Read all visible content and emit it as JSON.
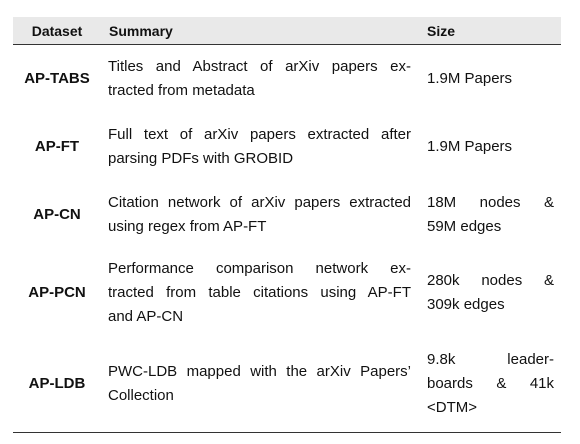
{
  "table": {
    "headers": {
      "dataset": "Dataset",
      "summary": "Summary",
      "size": "Size"
    },
    "rows": [
      {
        "dataset": "AP-TABS",
        "summary_lines": [
          "Titles and Abstract of arXiv papers ex-",
          "tracted from metadata"
        ],
        "size_lines": [
          "1.9M Papers"
        ]
      },
      {
        "dataset": "AP-FT",
        "summary_lines": [
          "Full text of arXiv papers extracted after",
          "parsing PDFs with GROBID"
        ],
        "size_lines": [
          "1.9M Papers"
        ]
      },
      {
        "dataset": "AP-CN",
        "summary_lines": [
          "Citation network of arXiv papers extracted",
          "using regex from AP-FT"
        ],
        "size_lines": [
          "18M nodes &",
          "59M edges"
        ]
      },
      {
        "dataset": "AP-PCN",
        "summary_lines": [
          "Performance comparison network ex-",
          "tracted from table citations using AP-FT",
          "and AP-CN"
        ],
        "size_lines": [
          "280k nodes &",
          "309k edges"
        ]
      },
      {
        "dataset": "AP-LDB",
        "summary_lines": [
          "PWC-LDB mapped with the arXiv Papers’",
          "Collection"
        ],
        "size_lines": [
          "9.8k leader-",
          "boards & 41k",
          "<DTM>"
        ]
      }
    ]
  }
}
